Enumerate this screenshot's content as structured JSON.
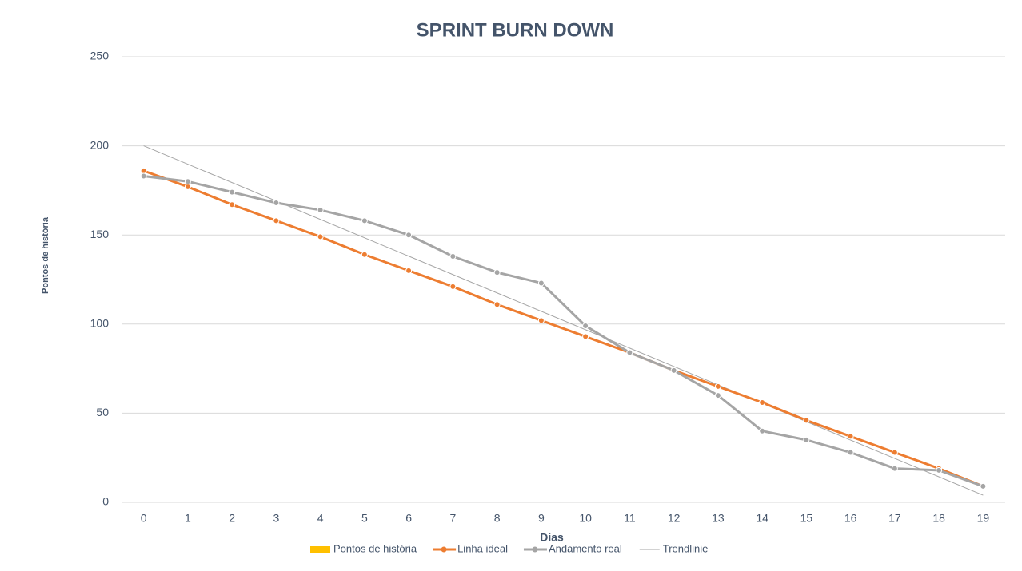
{
  "chart_data": {
    "type": "line",
    "title": "SPRINT BURN DOWN",
    "x_label": "Dias",
    "y_label": "Pontos de história",
    "categories": [
      "0",
      "1",
      "2",
      "3",
      "4",
      "5",
      "6",
      "7",
      "8",
      "9",
      "10",
      "11",
      "12",
      "13",
      "14",
      "15",
      "16",
      "17",
      "18",
      "19"
    ],
    "series": [
      {
        "name": "Pontos de história",
        "color": "#ffc000",
        "type": "bar",
        "values": [
          null,
          null,
          null,
          null,
          null,
          null,
          null,
          null,
          null,
          null,
          null,
          null,
          null,
          null,
          null,
          null,
          null,
          null,
          null,
          null
        ]
      },
      {
        "name": "Linha ideal",
        "color": "#ed7d31",
        "values": [
          186,
          177,
          167,
          158,
          149,
          139,
          130,
          121,
          111,
          102,
          93,
          84,
          74,
          65,
          56,
          46,
          37,
          28,
          19,
          9
        ]
      },
      {
        "name": "Andamento real",
        "color": "#a5a5a5",
        "values": [
          183,
          180,
          174,
          168,
          164,
          158,
          150,
          138,
          129,
          123,
          99,
          84,
          74,
          60,
          40,
          35,
          28,
          19,
          18,
          9
        ]
      }
    ],
    "trendline": {
      "name": "Trendlinie",
      "color": "#a5a5a5",
      "x": [
        0,
        19
      ],
      "values": [
        200,
        4
      ]
    },
    "ylim": [
      0,
      250
    ],
    "yticks": [
      0,
      50,
      100,
      150,
      200,
      250
    ],
    "grid": true,
    "legend": "bottom"
  }
}
